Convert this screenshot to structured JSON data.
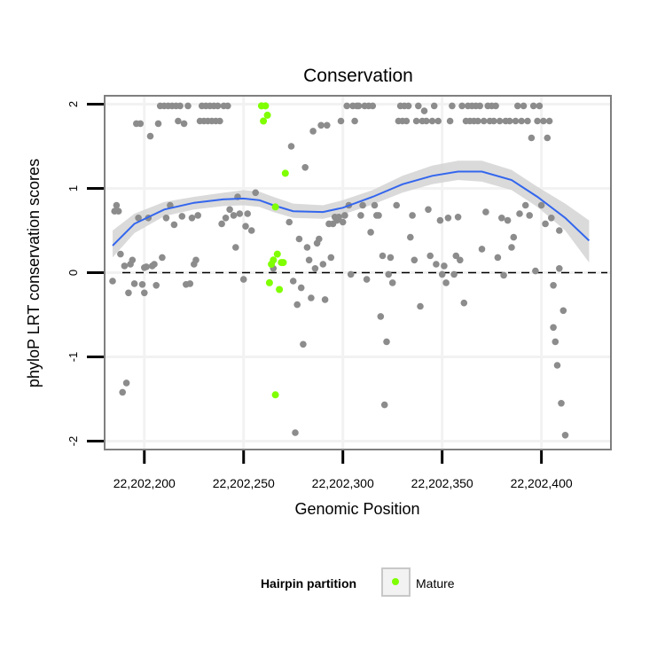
{
  "chart_data": {
    "type": "scatter",
    "title": "Conservation",
    "xlabel": "Genomic Position",
    "ylabel": "phyloP LRT conservation scores",
    "xlim": [
      22202180,
      22202435
    ],
    "ylim": [
      -2.1,
      2.1
    ],
    "x_ticks": [
      22202200,
      22202250,
      22202300,
      22202350,
      22202400
    ],
    "x_tick_labels": [
      "22,202,200",
      "22,202,250",
      "22,202,300",
      "22,202,350",
      "22,202,400"
    ],
    "y_ticks": [
      -2,
      -1,
      0,
      1,
      2
    ],
    "y_tick_labels": [
      "-2",
      "-1",
      "0",
      "1",
      "2"
    ],
    "grid": true,
    "reference_line": {
      "y": 0,
      "style": "dashed",
      "color": "#000000"
    },
    "colors": {
      "background_points": "#8c8c8c",
      "mature": "#7fff00",
      "smooth_line": "#3366ee",
      "confidence_band": "#d3d3d3",
      "panel_border": "#7f7f7f",
      "grid": "#f2f2f2"
    },
    "legend": {
      "title": "Hairpin partition",
      "placement": "bottom",
      "entries": [
        {
          "label": "Mature",
          "color": "#7fff00"
        }
      ]
    },
    "series": [
      {
        "role": "background",
        "points": [
          [
            22202184,
            -0.1
          ],
          [
            22202185,
            0.73
          ],
          [
            22202186,
            0.8
          ],
          [
            22202187,
            0.73
          ],
          [
            22202188,
            0.22
          ],
          [
            22202189,
            -1.42
          ],
          [
            22202190,
            0.08
          ],
          [
            22202191,
            -1.31
          ],
          [
            22202192,
            -0.24
          ],
          [
            22202193,
            0.1
          ],
          [
            22202194,
            0.15
          ],
          [
            22202195,
            -0.13
          ],
          [
            22202196,
            1.77
          ],
          [
            22202197,
            0.65
          ],
          [
            22202198,
            1.77
          ],
          [
            22202199,
            -0.14
          ],
          [
            22202200,
            -0.24
          ],
          [
            22202200,
            0.06
          ],
          [
            22202201,
            0.07
          ],
          [
            22202202,
            0.65
          ],
          [
            22202203,
            1.62
          ],
          [
            22202204,
            0.08
          ],
          [
            22202205,
            0.1
          ],
          [
            22202206,
            -0.15
          ],
          [
            22202207,
            1.77
          ],
          [
            22202208,
            1.98
          ],
          [
            22202209,
            0.18
          ],
          [
            22202210,
            1.98
          ],
          [
            22202211,
            0.65
          ],
          [
            22202212,
            1.98
          ],
          [
            22202213,
            0.8
          ],
          [
            22202214,
            1.98
          ],
          [
            22202215,
            0.57
          ],
          [
            22202216,
            1.98
          ],
          [
            22202217,
            1.8
          ],
          [
            22202218,
            1.98
          ],
          [
            22202219,
            0.67
          ],
          [
            22202220,
            1.77
          ],
          [
            22202221,
            -0.14
          ],
          [
            22202222,
            1.98
          ],
          [
            22202223,
            -0.13
          ],
          [
            22202224,
            0.65
          ],
          [
            22202225,
            0.1
          ],
          [
            22202226,
            0.15
          ],
          [
            22202227,
            0.68
          ],
          [
            22202228,
            1.8
          ],
          [
            22202229,
            1.98
          ],
          [
            22202230,
            1.8
          ],
          [
            22202231,
            1.98
          ],
          [
            22202232,
            1.8
          ],
          [
            22202233,
            1.98
          ],
          [
            22202234,
            1.8
          ],
          [
            22202235,
            1.98
          ],
          [
            22202236,
            1.8
          ],
          [
            22202237,
            1.98
          ],
          [
            22202238,
            1.8
          ],
          [
            22202239,
            0.58
          ],
          [
            22202240,
            1.98
          ],
          [
            22202241,
            0.65
          ],
          [
            22202242,
            1.98
          ],
          [
            22202243,
            0.75
          ],
          [
            22202245,
            0.68
          ],
          [
            22202246,
            0.3
          ],
          [
            22202247,
            0.9
          ],
          [
            22202248,
            0.7
          ],
          [
            22202250,
            -0.08
          ],
          [
            22202251,
            0.55
          ],
          [
            22202252,
            0.7
          ],
          [
            22202254,
            0.5
          ],
          [
            22202256,
            0.95
          ],
          [
            22202265,
            0.05
          ],
          [
            22202273,
            0.6
          ],
          [
            22202274,
            1.5
          ],
          [
            22202275,
            -0.1
          ],
          [
            22202276,
            -1.9
          ],
          [
            22202277,
            -0.38
          ],
          [
            22202278,
            0.4
          ],
          [
            22202279,
            -0.18
          ],
          [
            22202280,
            -0.85
          ],
          [
            22202281,
            1.25
          ],
          [
            22202282,
            0.3
          ],
          [
            22202283,
            0.15
          ],
          [
            22202284,
            -0.3
          ],
          [
            22202285,
            1.68
          ],
          [
            22202286,
            0.05
          ],
          [
            22202287,
            0.35
          ],
          [
            22202288,
            0.4
          ],
          [
            22202289,
            1.75
          ],
          [
            22202290,
            0.1
          ],
          [
            22202291,
            -0.32
          ],
          [
            22202292,
            1.75
          ],
          [
            22202293,
            0.58
          ],
          [
            22202294,
            0.18
          ],
          [
            22202295,
            0.58
          ],
          [
            22202296,
            0.66
          ],
          [
            22202297,
            0.62
          ],
          [
            22202298,
            0.66
          ],
          [
            22202299,
            1.8
          ],
          [
            22202300,
            0.6
          ],
          [
            22202301,
            0.68
          ],
          [
            22202302,
            1.98
          ],
          [
            22202303,
            0.8
          ],
          [
            22202304,
            -0.02
          ],
          [
            22202305,
            1.98
          ],
          [
            22202306,
            1.8
          ],
          [
            22202307,
            1.98
          ],
          [
            22202308,
            1.98
          ],
          [
            22202309,
            0.68
          ],
          [
            22202310,
            0.8
          ],
          [
            22202311,
            1.98
          ],
          [
            22202312,
            -0.08
          ],
          [
            22202313,
            1.98
          ],
          [
            22202314,
            0.48
          ],
          [
            22202315,
            1.98
          ],
          [
            22202316,
            0.8
          ],
          [
            22202317,
            0.68
          ],
          [
            22202318,
            0.68
          ],
          [
            22202319,
            -0.52
          ],
          [
            22202320,
            0.2
          ],
          [
            22202321,
            -1.57
          ],
          [
            22202322,
            -0.82
          ],
          [
            22202323,
            -0.02
          ],
          [
            22202324,
            0.18
          ],
          [
            22202325,
            -0.12
          ],
          [
            22202327,
            0.8
          ],
          [
            22202328,
            1.8
          ],
          [
            22202329,
            1.98
          ],
          [
            22202330,
            1.8
          ],
          [
            22202331,
            1.98
          ],
          [
            22202332,
            1.8
          ],
          [
            22202333,
            1.98
          ],
          [
            22202334,
            0.42
          ],
          [
            22202335,
            0.68
          ],
          [
            22202336,
            0.15
          ],
          [
            22202337,
            1.8
          ],
          [
            22202338,
            1.98
          ],
          [
            22202339,
            -0.4
          ],
          [
            22202340,
            1.8
          ],
          [
            22202341,
            1.92
          ],
          [
            22202342,
            1.8
          ],
          [
            22202343,
            0.75
          ],
          [
            22202344,
            0.2
          ],
          [
            22202345,
            1.8
          ],
          [
            22202346,
            1.98
          ],
          [
            22202347,
            0.1
          ],
          [
            22202348,
            1.8
          ],
          [
            22202349,
            0.62
          ],
          [
            22202350,
            -0.02
          ],
          [
            22202351,
            0.08
          ],
          [
            22202352,
            -0.12
          ],
          [
            22202353,
            0.65
          ],
          [
            22202354,
            1.8
          ],
          [
            22202355,
            1.98
          ],
          [
            22202356,
            -0.02
          ],
          [
            22202357,
            0.2
          ],
          [
            22202358,
            0.66
          ],
          [
            22202359,
            0.15
          ],
          [
            22202360,
            1.98
          ],
          [
            22202361,
            -0.36
          ],
          [
            22202362,
            1.8
          ],
          [
            22202363,
            1.98
          ],
          [
            22202364,
            1.8
          ],
          [
            22202365,
            1.98
          ],
          [
            22202366,
            1.8
          ],
          [
            22202367,
            1.98
          ],
          [
            22202368,
            1.8
          ],
          [
            22202369,
            1.98
          ],
          [
            22202370,
            0.28
          ],
          [
            22202371,
            1.8
          ],
          [
            22202372,
            0.72
          ],
          [
            22202373,
            1.98
          ],
          [
            22202374,
            1.8
          ],
          [
            22202375,
            1.98
          ],
          [
            22202376,
            1.8
          ],
          [
            22202377,
            1.98
          ],
          [
            22202378,
            0.18
          ],
          [
            22202379,
            1.8
          ],
          [
            22202380,
            0.65
          ],
          [
            22202381,
            -0.03
          ],
          [
            22202382,
            1.8
          ],
          [
            22202383,
            0.62
          ],
          [
            22202384,
            1.8
          ],
          [
            22202385,
            0.3
          ],
          [
            22202386,
            0.42
          ],
          [
            22202387,
            1.8
          ],
          [
            22202388,
            1.98
          ],
          [
            22202389,
            0.7
          ],
          [
            22202390,
            1.8
          ],
          [
            22202391,
            1.98
          ],
          [
            22202392,
            0.8
          ],
          [
            22202393,
            1.8
          ],
          [
            22202394,
            0.68
          ],
          [
            22202395,
            1.6
          ],
          [
            22202396,
            1.98
          ],
          [
            22202397,
            0.02
          ],
          [
            22202398,
            1.8
          ],
          [
            22202399,
            1.98
          ],
          [
            22202400,
            0.8
          ],
          [
            22202401,
            1.8
          ],
          [
            22202402,
            0.58
          ],
          [
            22202403,
            1.6
          ],
          [
            22202404,
            1.8
          ],
          [
            22202405,
            0.65
          ],
          [
            22202406,
            -0.15
          ],
          [
            22202406,
            -0.65
          ],
          [
            22202407,
            -0.82
          ],
          [
            22202408,
            -1.1
          ],
          [
            22202409,
            0.5
          ],
          [
            22202409,
            0.05
          ],
          [
            22202410,
            -1.55
          ],
          [
            22202411,
            -0.45
          ],
          [
            22202412,
            -1.93
          ]
        ]
      },
      {
        "role": "highlight",
        "name": "Mature",
        "points": [
          [
            22202259,
            1.98
          ],
          [
            22202260,
            1.8
          ],
          [
            22202261,
            1.98
          ],
          [
            22202262,
            1.87
          ],
          [
            22202263,
            -0.12
          ],
          [
            22202264,
            0.1
          ],
          [
            22202265,
            0.15
          ],
          [
            22202266,
            0.78
          ],
          [
            22202266,
            -1.45
          ],
          [
            22202267,
            0.22
          ],
          [
            22202268,
            -0.2
          ],
          [
            22202269,
            0.12
          ],
          [
            22202270,
            0.12
          ],
          [
            22202271,
            1.18
          ]
        ]
      },
      {
        "role": "smooth",
        "points": [
          [
            22202184,
            0.32
          ],
          [
            22202195,
            0.58
          ],
          [
            22202210,
            0.75
          ],
          [
            22202225,
            0.83
          ],
          [
            22202240,
            0.87
          ],
          [
            22202250,
            0.88
          ],
          [
            22202258,
            0.86
          ],
          [
            22202265,
            0.8
          ],
          [
            22202275,
            0.73
          ],
          [
            22202290,
            0.72
          ],
          [
            22202300,
            0.77
          ],
          [
            22202315,
            0.9
          ],
          [
            22202330,
            1.05
          ],
          [
            22202345,
            1.15
          ],
          [
            22202358,
            1.2
          ],
          [
            22202370,
            1.2
          ],
          [
            22202385,
            1.1
          ],
          [
            22202398,
            0.9
          ],
          [
            22202412,
            0.65
          ],
          [
            22202424,
            0.38
          ]
        ],
        "band": [
          [
            22202184,
            0.18,
            0.5
          ],
          [
            22202195,
            0.47,
            0.7
          ],
          [
            22202210,
            0.67,
            0.84
          ],
          [
            22202225,
            0.75,
            0.9
          ],
          [
            22202240,
            0.79,
            0.95
          ],
          [
            22202250,
            0.8,
            0.98
          ],
          [
            22202258,
            0.78,
            0.96
          ],
          [
            22202265,
            0.72,
            0.9
          ],
          [
            22202275,
            0.65,
            0.82
          ],
          [
            22202290,
            0.64,
            0.8
          ],
          [
            22202300,
            0.69,
            0.86
          ],
          [
            22202315,
            0.81,
            0.98
          ],
          [
            22202330,
            0.95,
            1.15
          ],
          [
            22202345,
            1.05,
            1.27
          ],
          [
            22202358,
            1.1,
            1.33
          ],
          [
            22202370,
            1.08,
            1.33
          ],
          [
            22202385,
            0.98,
            1.22
          ],
          [
            22202398,
            0.78,
            1.02
          ],
          [
            22202412,
            0.5,
            0.82
          ],
          [
            22202424,
            0.12,
            0.62
          ]
        ]
      }
    ]
  }
}
